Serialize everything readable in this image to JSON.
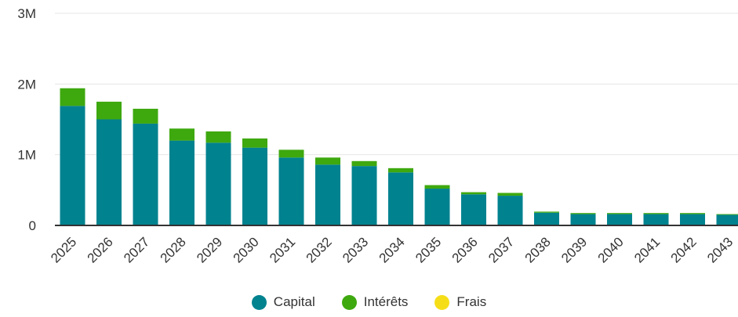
{
  "chart_data": {
    "type": "bar",
    "stacked": true,
    "categories": [
      "2025",
      "2026",
      "2027",
      "2028",
      "2029",
      "2030",
      "2031",
      "2032",
      "2033",
      "2034",
      "2035",
      "2036",
      "2037",
      "2038",
      "2039",
      "2040",
      "2041",
      "2042",
      "2043"
    ],
    "series": [
      {
        "name": "Capital",
        "color": "#00828F",
        "values": [
          1690000,
          1500000,
          1440000,
          1200000,
          1170000,
          1100000,
          960000,
          860000,
          840000,
          750000,
          520000,
          440000,
          420000,
          180000,
          160000,
          160000,
          160000,
          160000,
          150000
        ]
      },
      {
        "name": "Intérêts",
        "color": "#3EA80F",
        "values": [
          250000,
          250000,
          210000,
          170000,
          160000,
          130000,
          110000,
          100000,
          70000,
          60000,
          50000,
          30000,
          40000,
          15000,
          15000,
          15000,
          15000,
          15000,
          10000
        ]
      },
      {
        "name": "Frais",
        "color": "#F5DE18",
        "values": [
          0,
          0,
          0,
          0,
          0,
          0,
          0,
          0,
          0,
          0,
          0,
          0,
          0,
          0,
          0,
          0,
          0,
          0,
          0
        ]
      }
    ],
    "yticks": [
      0,
      1000000,
      2000000,
      3000000
    ],
    "ytick_labels": [
      "0",
      "1M",
      "2M",
      "3M"
    ],
    "ylim": [
      0,
      3000000
    ],
    "grid": true,
    "legend": "bottom-center",
    "title": "",
    "xlabel": "",
    "ylabel": ""
  }
}
